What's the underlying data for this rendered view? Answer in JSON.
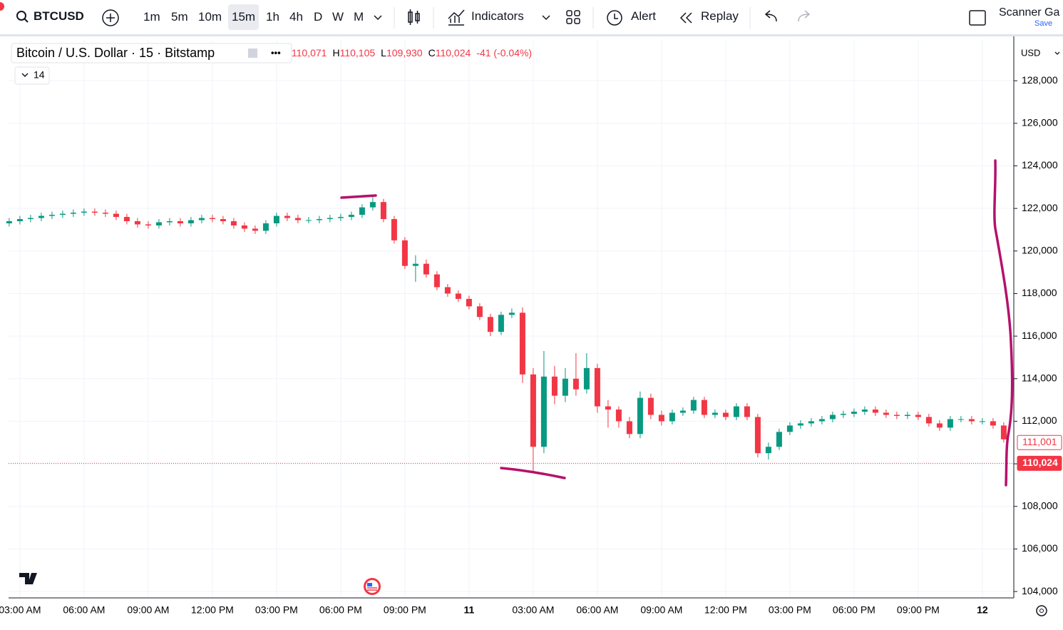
{
  "toolbar": {
    "symbol": "BTCUSD",
    "intervals": [
      "1m",
      "5m",
      "10m",
      "15m",
      "1h",
      "4h",
      "D",
      "W",
      "M"
    ],
    "indicators": "Indicators",
    "alert": "Alert",
    "replay": "Replay",
    "scanner": "Scanner Ga",
    "save": "Save"
  },
  "chart_data": {
    "type": "candlestick",
    "title": "Bitcoin / U.S. Dollar · 15 · Bitstamp",
    "ohlc": [
      {
        "label": "O",
        "value": "110,071"
      },
      {
        "label": "H",
        "value": "110,105"
      },
      {
        "label": "L",
        "value": "109,930"
      },
      {
        "label": "C",
        "value": "110,024"
      }
    ],
    "change": "-41 (-0.04%)",
    "indicator_count": 14,
    "currency": "USD",
    "up_color": "#089981",
    "down_color": "#f23645",
    "grid": true,
    "x": [
      2.5,
      3,
      3.5,
      4,
      4.5,
      5,
      5.5,
      6,
      6.5,
      7,
      7.5,
      8,
      8.5,
      9,
      9.5,
      10,
      10.5,
      11,
      11.5,
      12,
      12.5,
      13,
      13.5,
      14,
      14.5,
      15,
      15.5,
      16,
      16.5,
      17,
      17.5,
      18,
      18.5,
      19,
      19.5,
      20,
      20.5,
      21,
      21.5,
      22,
      22.5,
      23,
      23.5,
      24,
      24.5,
      25,
      25.5,
      26,
      26.5,
      27,
      27.5,
      28,
      28.5,
      29,
      29.5,
      30,
      30.5,
      31,
      31.5,
      32,
      32.5,
      33,
      33.5,
      34,
      34.5,
      35,
      35.5,
      36,
      36.5,
      37,
      37.5,
      38,
      38.5,
      39,
      39.5,
      40,
      40.5,
      41,
      41.5,
      42,
      42.5,
      43,
      43.5,
      44,
      44.5,
      45,
      45.5,
      46,
      46.5,
      47,
      47.5,
      48,
      48.5,
      49
    ],
    "open": [
      121300,
      121400,
      121500,
      121550,
      121650,
      121700,
      121750,
      121800,
      121850,
      121800,
      121750,
      121600,
      121400,
      121250,
      121200,
      121350,
      121400,
      121300,
      121450,
      121550,
      121500,
      121400,
      121200,
      121050,
      120950,
      121300,
      121650,
      121550,
      121450,
      121450,
      121500,
      121550,
      121600,
      121700,
      122050,
      122300,
      121500,
      120500,
      119300,
      119400,
      118900,
      118300,
      118000,
      117750,
      117400,
      116900,
      116200,
      117000,
      117100,
      114200,
      110800,
      114100,
      113200,
      114000,
      113500,
      114500,
      112700,
      112550,
      112000,
      111400,
      113100,
      112300,
      112000,
      112400,
      112500,
      113000,
      112300,
      112400,
      112200,
      112700,
      112200,
      110500,
      110800,
      111500,
      111800,
      111900,
      112000,
      112100,
      112300,
      112350,
      112450,
      112550,
      112400,
      112300,
      112250,
      112300,
      112200,
      111900,
      111700,
      112100,
      112100,
      112000,
      112000,
      111800
    ],
    "high": [
      121550,
      121650,
      121700,
      121800,
      121850,
      121900,
      121950,
      122000,
      122000,
      121950,
      121900,
      121750,
      121550,
      121400,
      121500,
      121550,
      121550,
      121600,
      121700,
      121700,
      121650,
      121550,
      121350,
      121200,
      121450,
      121800,
      121800,
      121700,
      121600,
      121650,
      121700,
      121750,
      121850,
      122200,
      122570,
      122450,
      121650,
      120650,
      119800,
      119600,
      119050,
      118450,
      118150,
      117900,
      117550,
      117050,
      117150,
      117300,
      117350,
      114500,
      115300,
      114600,
      114500,
      115200,
      115200,
      114700,
      113000,
      112700,
      112200,
      113400,
      113300,
      112500,
      112550,
      112650,
      113150,
      113150,
      112550,
      112550,
      112850,
      112850,
      112350,
      111000,
      111650,
      111950,
      112050,
      112150,
      112250,
      112450,
      112500,
      112600,
      112700,
      112700,
      112550,
      112450,
      112450,
      112450,
      112350,
      112050,
      112250,
      112250,
      112250,
      112150,
      112150,
      111950
    ],
    "low": [
      121150,
      121250,
      121350,
      121400,
      121500,
      121550,
      121600,
      121650,
      121650,
      121600,
      121450,
      121250,
      121100,
      121050,
      121050,
      121200,
      121150,
      121150,
      121300,
      121350,
      121250,
      121050,
      120900,
      120800,
      120800,
      121150,
      121400,
      121300,
      121300,
      121300,
      121350,
      121400,
      121450,
      121550,
      121900,
      121350,
      120350,
      119150,
      118550,
      118750,
      118150,
      117850,
      117600,
      117250,
      116750,
      116000,
      116050,
      116850,
      113800,
      109650,
      110500,
      112800,
      112900,
      113200,
      113300,
      112400,
      111700,
      111700,
      111200,
      111200,
      112100,
      111800,
      111850,
      112250,
      112350,
      112150,
      112150,
      112050,
      112050,
      112050,
      110300,
      110200,
      110650,
      111350,
      111650,
      111750,
      111850,
      111950,
      112150,
      112200,
      112300,
      112250,
      112150,
      112100,
      112100,
      112050,
      111750,
      111550,
      111550,
      111950,
      111850,
      111850,
      111650,
      111000
    ],
    "close": [
      121400,
      121500,
      121550,
      121650,
      121700,
      121750,
      121800,
      121850,
      121800,
      121750,
      121600,
      121400,
      121250,
      121200,
      121350,
      121400,
      121300,
      121450,
      121550,
      121500,
      121400,
      121200,
      121050,
      120950,
      121300,
      121650,
      121550,
      121450,
      121450,
      121500,
      121550,
      121600,
      121700,
      122050,
      122300,
      121500,
      120500,
      119300,
      119400,
      118900,
      118300,
      118000,
      117750,
      117400,
      116900,
      116200,
      117000,
      117100,
      114200,
      110800,
      114100,
      113200,
      114000,
      113500,
      114500,
      112700,
      112550,
      112000,
      111400,
      113100,
      112300,
      112000,
      112400,
      112500,
      113000,
      112300,
      112400,
      112200,
      112700,
      112200,
      110500,
      110800,
      111500,
      111800,
      111900,
      112000,
      112100,
      112300,
      112350,
      112450,
      112550,
      112400,
      112300,
      112250,
      112300,
      112200,
      111900,
      111700,
      112100,
      112100,
      112000,
      112000,
      111800,
      111150
    ],
    "xlim": [
      2.47,
      49.47
    ],
    "xticks": [
      {
        "value": 3,
        "label": "03:00 AM"
      },
      {
        "value": 6,
        "label": "06:00 AM"
      },
      {
        "value": 9,
        "label": "09:00 AM"
      },
      {
        "value": 12,
        "label": "12:00 PM"
      },
      {
        "value": 15,
        "label": "03:00 PM"
      },
      {
        "value": 18,
        "label": "06:00 PM"
      },
      {
        "value": 21,
        "label": "09:00 PM"
      },
      {
        "value": 24,
        "label": "11"
      },
      {
        "value": 27,
        "label": "03:00 AM"
      },
      {
        "value": 30,
        "label": "06:00 AM"
      },
      {
        "value": 33,
        "label": "09:00 AM"
      },
      {
        "value": 36,
        "label": "12:00 PM"
      },
      {
        "value": 39,
        "label": "03:00 PM"
      },
      {
        "value": 42,
        "label": "06:00 PM"
      },
      {
        "value": 45,
        "label": "09:00 PM"
      },
      {
        "value": 48,
        "label": "12"
      }
    ],
    "ylim": [
      103700,
      129950
    ],
    "yticks": [
      {
        "value": 104000,
        "label": "104,000"
      },
      {
        "value": 106000,
        "label": "106,000"
      },
      {
        "value": 108000,
        "label": "108,000"
      },
      {
        "value": 110000,
        "label": "110,000"
      },
      {
        "value": 112000,
        "label": "112,000"
      },
      {
        "value": 114000,
        "label": "114,000"
      },
      {
        "value": 116000,
        "label": "116,000"
      },
      {
        "value": 118000,
        "label": "118,000"
      },
      {
        "value": 120000,
        "label": "120,000"
      },
      {
        "value": 122000,
        "label": "122,000"
      },
      {
        "value": 124000,
        "label": "124,000"
      },
      {
        "value": 126000,
        "label": "126,000"
      },
      {
        "value": 128000,
        "label": "128,000"
      }
    ],
    "price_lines": [
      {
        "value": 111001,
        "label": "111,001"
      },
      {
        "value": 110024,
        "label": "110,024"
      }
    ]
  }
}
